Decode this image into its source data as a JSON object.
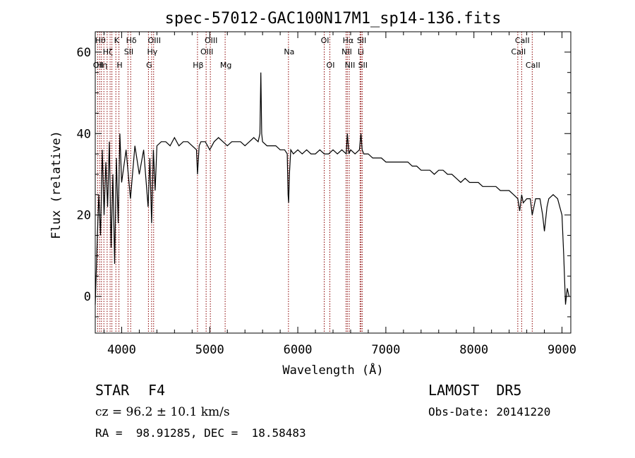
{
  "chart_data": {
    "type": "line",
    "title": "spec-57012-GAC100N17M1_sp14-136.fits",
    "xlabel": "Wavelength (Å)",
    "ylabel": "Flux (relative)",
    "xlim": [
      3700,
      9100
    ],
    "ylim": [
      -9,
      65
    ],
    "xticks": [
      4000,
      5000,
      6000,
      7000,
      8000,
      9000
    ],
    "yticks": [
      0,
      20,
      40,
      60
    ],
    "line_color": "#000000",
    "marker_color": "#8b0000",
    "series": [
      {
        "x": [
          3700,
          3720,
          3740,
          3760,
          3780,
          3800,
          3820,
          3840,
          3860,
          3880,
          3900,
          3920,
          3940,
          3960,
          3980,
          4000,
          4050,
          4100,
          4150,
          4200,
          4250,
          4300,
          4320,
          4340,
          4360,
          4380,
          4400,
          4450,
          4500,
          4550,
          4600,
          4650,
          4700,
          4750,
          4800,
          4850,
          4861,
          4880,
          4900,
          4950,
          5000,
          5050,
          5100,
          5150,
          5200,
          5250,
          5300,
          5350,
          5400,
          5450,
          5500,
          5550,
          5570,
          5580,
          5590,
          5600,
          5650,
          5700,
          5750,
          5800,
          5850,
          5880,
          5890,
          5896,
          5905,
          5920,
          5950,
          6000,
          6050,
          6100,
          6150,
          6200,
          6250,
          6300,
          6350,
          6400,
          6450,
          6500,
          6550,
          6563,
          6580,
          6600,
          6650,
          6700,
          6717,
          6731,
          6750,
          6800,
          6850,
          6900,
          6950,
          7000,
          7050,
          7100,
          7150,
          7200,
          7250,
          7300,
          7350,
          7400,
          7450,
          7500,
          7550,
          7600,
          7650,
          7700,
          7750,
          7800,
          7850,
          7900,
          7950,
          8000,
          8050,
          8100,
          8150,
          8200,
          8250,
          8300,
          8350,
          8400,
          8450,
          8498,
          8520,
          8542,
          8560,
          8600,
          8640,
          8662,
          8700,
          8750,
          8780,
          8800,
          8830,
          8850,
          8900,
          8950,
          9000,
          9020,
          9040,
          9060,
          9080
        ],
        "y": [
          -2,
          12,
          25,
          15,
          36,
          20,
          33,
          22,
          38,
          12,
          30,
          8,
          34,
          18,
          40,
          28,
          36,
          24,
          37,
          30,
          36,
          22,
          34,
          18,
          36,
          26,
          37,
          38,
          38,
          37,
          39,
          37,
          38,
          38,
          37,
          36,
          30,
          37,
          38,
          38,
          36,
          38,
          39,
          38,
          37,
          38,
          38,
          38,
          37,
          38,
          39,
          38,
          40,
          55,
          40,
          38,
          37,
          37,
          37,
          36,
          36,
          35,
          25,
          23,
          30,
          36,
          35,
          36,
          35,
          36,
          35,
          35,
          36,
          35,
          35,
          36,
          35,
          36,
          35,
          40,
          35,
          36,
          35,
          36,
          40,
          36,
          35,
          35,
          34,
          34,
          34,
          33,
          33,
          33,
          33,
          33,
          33,
          32,
          32,
          31,
          31,
          31,
          30,
          31,
          31,
          30,
          30,
          29,
          28,
          29,
          28,
          28,
          28,
          27,
          27,
          27,
          27,
          26,
          26,
          26,
          25,
          24,
          21,
          25,
          23,
          24,
          24,
          20,
          24,
          24,
          20,
          16,
          22,
          24,
          25,
          24,
          20,
          10,
          -2,
          2,
          0
        ]
      }
    ],
    "line_markers": [
      {
        "x": 3727,
        "label": "OII",
        "row": 3
      },
      {
        "x": 3750,
        "label": "Hθ",
        "row": 1
      },
      {
        "x": 3770,
        "label": "Hη",
        "row": 3
      },
      {
        "x": 3798,
        "label": "",
        "row": 0
      },
      {
        "x": 3835,
        "label": "Hζ",
        "row": 2
      },
      {
        "x": 3869,
        "label": "",
        "row": 0
      },
      {
        "x": 3889,
        "label": "",
        "row": 0
      },
      {
        "x": 3934,
        "label": "K",
        "row": 1
      },
      {
        "x": 3969,
        "label": "H",
        "row": 3
      },
      {
        "x": 4102,
        "label": "Hδ",
        "row": 1
      },
      {
        "x": 4072,
        "label": "SII",
        "row": 2
      },
      {
        "x": 4304,
        "label": "G",
        "row": 3
      },
      {
        "x": 4340,
        "label": "Hγ",
        "row": 2
      },
      {
        "x": 4363,
        "label": "OIII",
        "row": 1
      },
      {
        "x": 4861,
        "label": "Hβ",
        "row": 3
      },
      {
        "x": 4959,
        "label": "OIII",
        "row": 2
      },
      {
        "x": 5007,
        "label": "OIII",
        "row": 1
      },
      {
        "x": 5175,
        "label": "Mg",
        "row": 3
      },
      {
        "x": 5894,
        "label": "Na",
        "row": 2
      },
      {
        "x": 6300,
        "label": "OI",
        "row": 1
      },
      {
        "x": 6364,
        "label": "OI",
        "row": 3
      },
      {
        "x": 6548,
        "label": "NII",
        "row": 2
      },
      {
        "x": 6563,
        "label": "Hα",
        "row": 1
      },
      {
        "x": 6584,
        "label": "NII",
        "row": 3
      },
      {
        "x": 6707,
        "label": "Li",
        "row": 2
      },
      {
        "x": 6717,
        "label": "SII",
        "row": 1
      },
      {
        "x": 6731,
        "label": "SII",
        "row": 3
      },
      {
        "x": 8498,
        "label": "CaII",
        "row": 2
      },
      {
        "x": 8542,
        "label": "CaII",
        "row": 1
      },
      {
        "x": 8662,
        "label": "CaII",
        "row": 3
      }
    ]
  },
  "info": {
    "object_class": "STAR",
    "subclass": "F4",
    "survey": "LAMOST  DR5",
    "redshift": "cz = 96.2 ± 10.1 km/s",
    "obs_date": "Obs-Date: 20141220",
    "coords": "RA =  98.91285, DEC =  18.58483"
  }
}
